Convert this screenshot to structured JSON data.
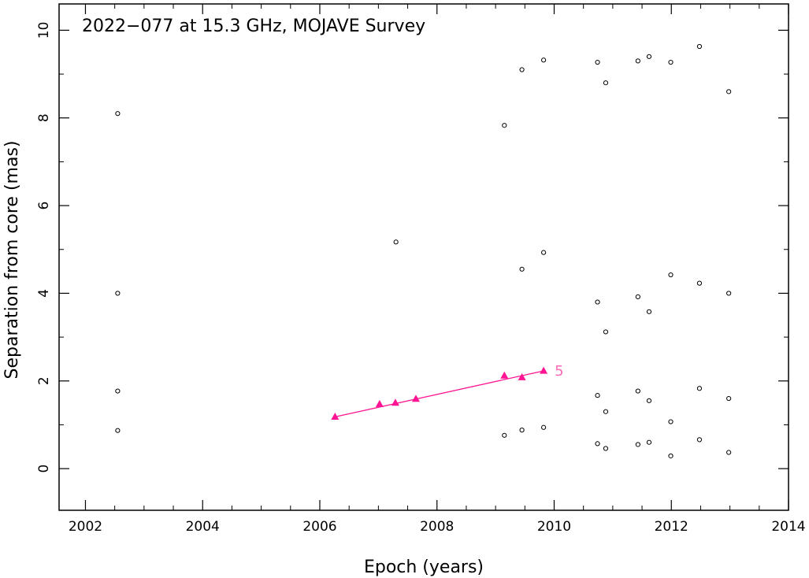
{
  "chart_data": {
    "type": "scatter",
    "title": "2022−077 at 15.3 GHz, MOJAVE Survey",
    "xlabel": "Epoch (years)",
    "ylabel": "Separation from core (mas)",
    "xlim": [
      2001.55,
      2014.0
    ],
    "ylim": [
      -0.95,
      10.6
    ],
    "xticks": [
      2002,
      2004,
      2006,
      2008,
      2010,
      2012,
      2014
    ],
    "xtick_labels": [
      "2002",
      "2004",
      "2006",
      "2008",
      "2010",
      "2012",
      "2014"
    ],
    "yticks": [
      0,
      2,
      4,
      6,
      8,
      10
    ],
    "ytick_labels": [
      "0",
      "2",
      "4",
      "6",
      "8",
      "10"
    ],
    "grid": false,
    "series": [
      {
        "marker": "open-circle",
        "color": "#000000",
        "points": [
          [
            2002.55,
            8.1
          ],
          [
            2002.55,
            4.0
          ],
          [
            2002.55,
            1.77
          ],
          [
            2002.55,
            0.87
          ],
          [
            2007.3,
            5.17
          ],
          [
            2009.15,
            7.83
          ],
          [
            2009.15,
            0.76
          ],
          [
            2009.45,
            9.1
          ],
          [
            2009.45,
            4.55
          ],
          [
            2009.45,
            0.88
          ],
          [
            2009.82,
            9.32
          ],
          [
            2009.82,
            4.93
          ],
          [
            2009.82,
            0.94
          ],
          [
            2010.74,
            9.27
          ],
          [
            2010.74,
            3.8
          ],
          [
            2010.74,
            1.67
          ],
          [
            2010.74,
            0.57
          ],
          [
            2010.88,
            8.8
          ],
          [
            2010.88,
            3.12
          ],
          [
            2010.88,
            1.3
          ],
          [
            2010.88,
            0.46
          ],
          [
            2011.43,
            9.3
          ],
          [
            2011.43,
            3.92
          ],
          [
            2011.43,
            1.77
          ],
          [
            2011.43,
            0.55
          ],
          [
            2011.62,
            9.4
          ],
          [
            2011.62,
            3.58
          ],
          [
            2011.62,
            1.55
          ],
          [
            2011.62,
            0.6
          ],
          [
            2011.99,
            9.27
          ],
          [
            2011.99,
            4.42
          ],
          [
            2011.99,
            1.07
          ],
          [
            2011.99,
            0.29
          ],
          [
            2012.48,
            9.63
          ],
          [
            2012.48,
            4.23
          ],
          [
            2012.48,
            1.83
          ],
          [
            2012.48,
            0.66
          ],
          [
            2012.98,
            8.6
          ],
          [
            2012.98,
            4.0
          ],
          [
            2012.98,
            1.6
          ],
          [
            2012.98,
            0.37
          ]
        ]
      },
      {
        "name": "5",
        "marker": "filled-triangle",
        "color": "#ff1493",
        "points": [
          [
            2006.26,
            1.18
          ],
          [
            2007.02,
            1.47
          ],
          [
            2007.29,
            1.5
          ],
          [
            2007.64,
            1.59
          ],
          [
            2009.15,
            2.12
          ],
          [
            2009.45,
            2.08
          ],
          [
            2009.82,
            2.23
          ]
        ],
        "fit_line": [
          [
            2006.26,
            1.18
          ],
          [
            2009.82,
            2.23
          ]
        ]
      }
    ]
  },
  "colors": {
    "axes": "#000000",
    "component": "#ff1493",
    "component_label": "#ff69b4"
  }
}
